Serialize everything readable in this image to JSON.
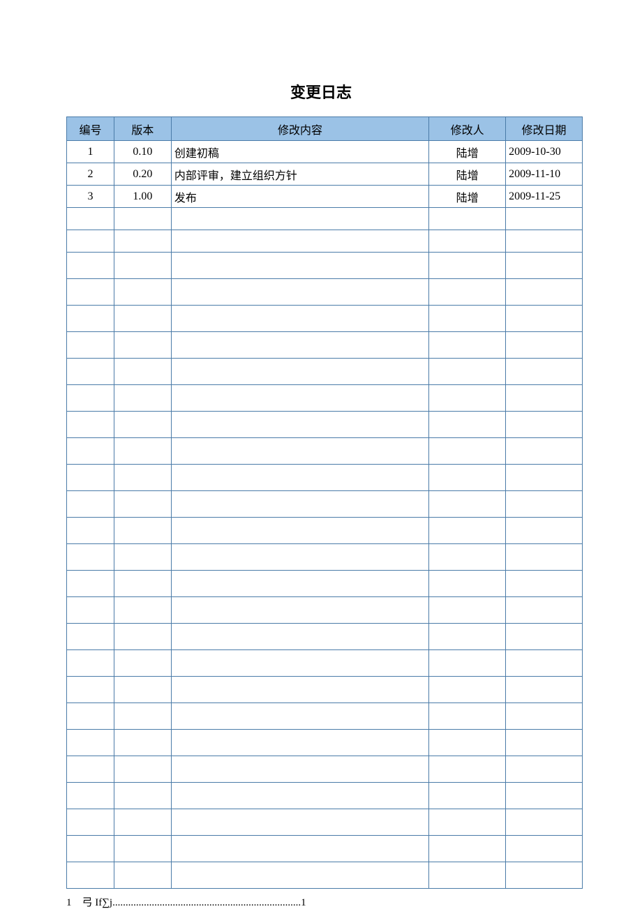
{
  "title": "变更日志",
  "table": {
    "headers": {
      "number": "编号",
      "version": "版本",
      "content": "修改内容",
      "author": "修改人",
      "date": "修改日期"
    },
    "rows": [
      {
        "number": "1",
        "version": "0.10",
        "content": "创建初稿",
        "author": "陆增",
        "date": "2009-10-30"
      },
      {
        "number": "2",
        "version": "0.20",
        "content": "内部评审，建立组织方针",
        "author": "陆增",
        "date": "2009-11-10"
      },
      {
        "number": "3",
        "version": "1.00",
        "content": "发布",
        "author": "陆增",
        "date": "2009-11-25"
      },
      {
        "number": "",
        "version": "",
        "content": "",
        "author": "",
        "date": ""
      },
      {
        "number": "",
        "version": "",
        "content": "",
        "author": "",
        "date": ""
      },
      {
        "number": "",
        "version": "",
        "content": "",
        "author": "",
        "date": ""
      },
      {
        "number": "",
        "version": "",
        "content": "",
        "author": "",
        "date": ""
      },
      {
        "number": "",
        "version": "",
        "content": "",
        "author": "",
        "date": ""
      },
      {
        "number": "",
        "version": "",
        "content": "",
        "author": "",
        "date": ""
      },
      {
        "number": "",
        "version": "",
        "content": "",
        "author": "",
        "date": ""
      },
      {
        "number": "",
        "version": "",
        "content": "",
        "author": "",
        "date": ""
      },
      {
        "number": "",
        "version": "",
        "content": "",
        "author": "",
        "date": ""
      },
      {
        "number": "",
        "version": "",
        "content": "",
        "author": "",
        "date": ""
      },
      {
        "number": "",
        "version": "",
        "content": "",
        "author": "",
        "date": ""
      },
      {
        "number": "",
        "version": "",
        "content": "",
        "author": "",
        "date": ""
      },
      {
        "number": "",
        "version": "",
        "content": "",
        "author": "",
        "date": ""
      },
      {
        "number": "",
        "version": "",
        "content": "",
        "author": "",
        "date": ""
      },
      {
        "number": "",
        "version": "",
        "content": "",
        "author": "",
        "date": ""
      },
      {
        "number": "",
        "version": "",
        "content": "",
        "author": "",
        "date": ""
      },
      {
        "number": "",
        "version": "",
        "content": "",
        "author": "",
        "date": ""
      },
      {
        "number": "",
        "version": "",
        "content": "",
        "author": "",
        "date": ""
      },
      {
        "number": "",
        "version": "",
        "content": "",
        "author": "",
        "date": ""
      },
      {
        "number": "",
        "version": "",
        "content": "",
        "author": "",
        "date": ""
      },
      {
        "number": "",
        "version": "",
        "content": "",
        "author": "",
        "date": ""
      },
      {
        "number": "",
        "version": "",
        "content": "",
        "author": "",
        "date": ""
      },
      {
        "number": "",
        "version": "",
        "content": "",
        "author": "",
        "date": ""
      },
      {
        "number": "",
        "version": "",
        "content": "",
        "author": "",
        "date": ""
      },
      {
        "number": "",
        "version": "",
        "content": "",
        "author": "",
        "date": ""
      },
      {
        "number": "",
        "version": "",
        "content": "",
        "author": "",
        "date": ""
      }
    ],
    "empty_row_heights": [
      32,
      32,
      38,
      38,
      38,
      38,
      38,
      38,
      38,
      38,
      38,
      38,
      38,
      38,
      38,
      38,
      38,
      38,
      38,
      38,
      38,
      38,
      38,
      38,
      38,
      38
    ],
    "column_widths": {
      "number": 68,
      "version": 82,
      "content": 370,
      "author": 110,
      "date": 110
    },
    "header_bg": "#9bc2e6",
    "border_color": "#4a7ba8",
    "text_color": "#000000",
    "header_fontsize": 16,
    "cell_fontsize": 16
  },
  "footer": "1 弓 If∑j........................................................................1"
}
